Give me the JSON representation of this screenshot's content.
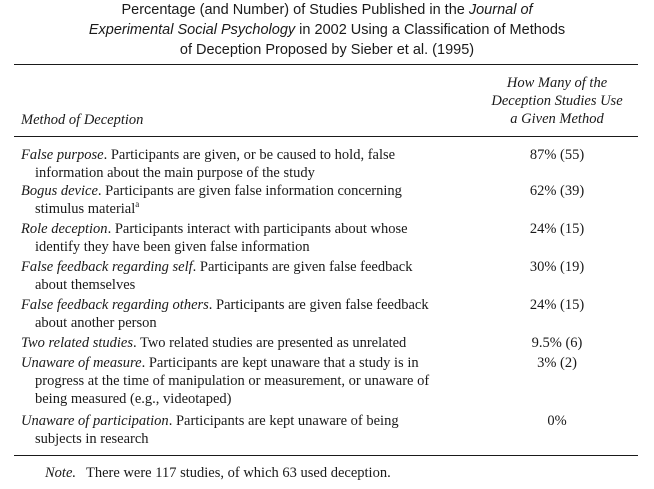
{
  "caption": {
    "line1": "Percentage (and Number) of Studies Published in the ",
    "journal_part1": "Journal of",
    "journal_part2": "Experimental Social Psychology",
    "line2_rest": " in 2002 Using a Classification of Methods",
    "line3": "of Deception Proposed by Sieber et al. (1995)"
  },
  "header": {
    "method": "Method of Deception",
    "count_lines": [
      "How Many of the",
      "Deception Studies Use",
      "a Given Method"
    ]
  },
  "rows": [
    {
      "term": "False purpose",
      "rest": ". Participants are given, or be caused to hold, false",
      "cont": [
        "information about the main purpose of the study"
      ],
      "sup": "",
      "value": "87% (55)"
    },
    {
      "term": "Bogus device",
      "rest": ". Participants are given false information concerning",
      "cont": [
        "stimulus material"
      ],
      "sup": "a",
      "value": "62% (39)"
    },
    {
      "term": "Role deception",
      "rest": ". Participants interact with participants about whose",
      "cont": [
        "identify they have been given false information"
      ],
      "sup": "",
      "value": "24% (15)"
    },
    {
      "term": "False feedback regarding self",
      "rest": ". Participants are given false feedback",
      "cont": [
        "about themselves"
      ],
      "sup": "",
      "value": "30% (19)"
    },
    {
      "term": "False feedback regarding others",
      "rest": ". Participants are given false feedback",
      "cont": [
        "about another person"
      ],
      "sup": "",
      "value": "24% (15)"
    },
    {
      "term": "Two related studies",
      "rest": ". Two related studies are presented as unrelated",
      "cont": [],
      "sup": "",
      "value": "9.5% (6)"
    },
    {
      "term": "Unaware of measure",
      "rest": ". Participants are kept unaware that a study is in",
      "cont": [
        "progress at the time of manipulation or measurement, or unaware of",
        "being measured (e.g., videotaped)"
      ],
      "sup": "",
      "value": "3% (2)"
    },
    {
      "term": "Unaware of participation",
      "rest": ". Participants are kept unaware of being",
      "cont": [
        "subjects in research"
      ],
      "sup": "",
      "value": "0%"
    }
  ],
  "note": {
    "label": "Note.",
    "text": "There were 117 studies, of which 63 used deception."
  }
}
